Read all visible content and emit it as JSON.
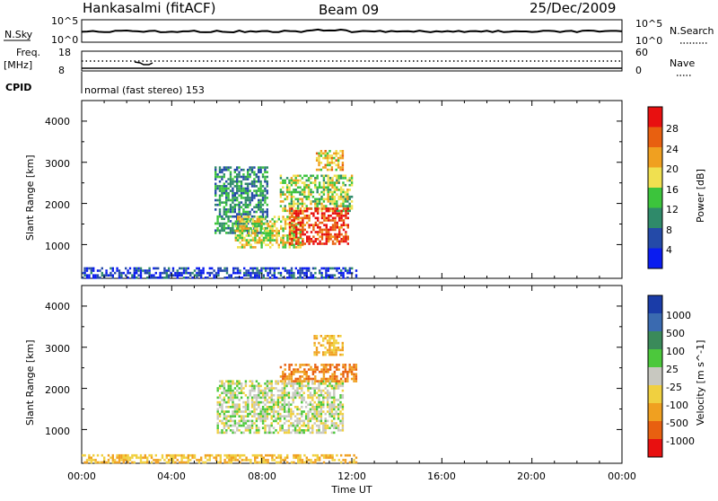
{
  "header": {
    "title": "Hankasalmi (fitACF)",
    "beam": "Beam 09",
    "date": "25/Dec/2009"
  },
  "noise_panel": {
    "label": "N.Sky",
    "right_label": "N.Search",
    "ticks_left": [
      "10^5",
      "10^0"
    ],
    "ticks_right": [
      "10^5",
      "10^0"
    ]
  },
  "freq_panel": {
    "label_line1": "Freq.",
    "label_line2": "[MHz]",
    "ticks_left": [
      "18",
      "8"
    ],
    "ticks_right": [
      "60",
      "0"
    ],
    "right_label": "Nave"
  },
  "cpid": {
    "label": "CPID",
    "text": "normal (fast stereo) 153"
  },
  "x_axis": {
    "label": "Time UT",
    "ticks": [
      "00:00",
      "04:00",
      "08:00",
      "12:00",
      "16:00",
      "20:00",
      "00:00"
    ]
  },
  "y_axis": {
    "label": "Slant Range [km]",
    "ticks": [
      "1000",
      "2000",
      "3000",
      "4000"
    ]
  },
  "power_colorbar": {
    "label": "Power [dB]",
    "ticks": [
      "4",
      "8",
      "12",
      "16",
      "20",
      "24",
      "28"
    ],
    "colors": [
      "#0a1cf0",
      "#244aa8",
      "#2f8a6a",
      "#3cc43c",
      "#f0e050",
      "#f0a020",
      "#e86010",
      "#e81010"
    ]
  },
  "velocity_colorbar": {
    "label": "Velocity [m s^-1]",
    "ticks": [
      "1000",
      "500",
      "100",
      "25",
      "-25",
      "-100",
      "-500",
      "-1000"
    ],
    "colors": [
      "#1a3ca8",
      "#3a6ab0",
      "#3a8a5a",
      "#4cc83c",
      "#c8c8c0",
      "#f0d040",
      "#f0a020",
      "#e86010",
      "#e81010"
    ]
  },
  "chart_data": {
    "type": "heatmap",
    "title": "Hankasalmi (fitACF)",
    "xlabel": "Time UT",
    "ylabel": "Slant Range [km]",
    "xlim": [
      0,
      24
    ],
    "ylim": [
      180,
      4500
    ],
    "panels": [
      {
        "name": "Power [dB]",
        "scale": [
          0,
          30
        ],
        "regions": [
          {
            "t": [
              0.0,
              12.2
            ],
            "range": [
              180,
              450
            ],
            "value": 4
          },
          {
            "t": [
              5.9,
              8.2
            ],
            "range": [
              1300,
              2900
            ],
            "value": 10
          },
          {
            "t": [
              6.8,
              9.8
            ],
            "range": [
              950,
              1700
            ],
            "value": 18
          },
          {
            "t": [
              8.8,
              12.0
            ],
            "range": [
              1800,
              2700
            ],
            "value": 16
          },
          {
            "t": [
              9.2,
              11.8
            ],
            "range": [
              1000,
              1900
            ],
            "value": 28
          },
          {
            "t": [
              10.4,
              11.6
            ],
            "range": [
              2800,
              3300
            ],
            "value": 20
          }
        ]
      },
      {
        "name": "Velocity [m s^-1]",
        "scale": [
          -1000,
          1000
        ],
        "regions": [
          {
            "t": [
              0.0,
              12.2
            ],
            "range": [
              180,
              400
            ],
            "value": -100
          },
          {
            "t": [
              6.0,
              11.6
            ],
            "range": [
              900,
              2200
            ],
            "value": 0
          },
          {
            "t": [
              8.8,
              12.2
            ],
            "range": [
              2200,
              2600
            ],
            "value": -500
          },
          {
            "t": [
              10.3,
              11.6
            ],
            "range": [
              2800,
              3300
            ],
            "value": -100
          }
        ]
      }
    ]
  }
}
